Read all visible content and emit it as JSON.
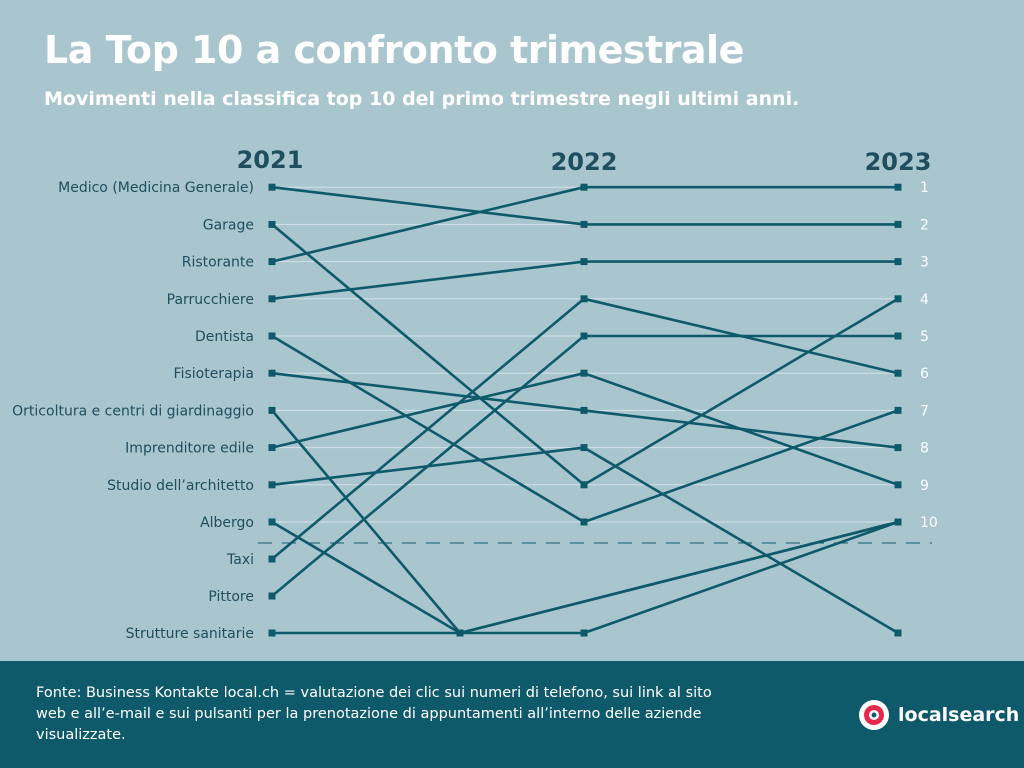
{
  "title": "La Top 10 a confronto trimestrale",
  "subtitle": "Movimenti nella classifica top 10 del primo trimestre negli ultimi anni.",
  "footer": {
    "source": "Fonte: Business Kontakte local.ch = valutazione dei clic sui numeri di telefono, sui link al sito web e all’e-mail e sui pulsanti per la prenotazione di appuntamenti all’interno delle aziende visualizzate.",
    "logo_text": "localsearch"
  },
  "colors": {
    "background": "#a9c5ce",
    "line": "#0f5a6a",
    "footer": "#0f5a6a",
    "label": "#1f4f5f",
    "gridline": "#d3e2e7",
    "logo_red": "#e6294b"
  },
  "chart_data": {
    "type": "line",
    "chart_kind": "bump chart (rank changes)",
    "years": [
      "2021",
      "2022",
      "2023"
    ],
    "ranks": [
      "1",
      "2",
      "3",
      "4",
      "5",
      "6",
      "7",
      "8",
      "9",
      "10"
    ],
    "left_labels": [
      "Medico (Medicina Generale)",
      "Garage",
      "Ristorante",
      "Parrucchiere",
      "Dentista",
      "Fisioterapia",
      "Orticoltura e centri di giardinaggio",
      "Imprenditore edile",
      "Studio dell’architetto",
      "Albergo",
      "Taxi",
      "Pittore",
      "Strutture sanitarie"
    ],
    "top10_cutoff": 10,
    "series": [
      {
        "name": "Medico (Medicina Generale)",
        "values": [
          1,
          2,
          2
        ]
      },
      {
        "name": "Garage",
        "values": [
          2,
          9,
          4
        ]
      },
      {
        "name": "Ristorante",
        "values": [
          3,
          1,
          1
        ]
      },
      {
        "name": "Parrucchiere",
        "values": [
          4,
          3,
          3
        ]
      },
      {
        "name": "Dentista",
        "values": [
          5,
          10,
          7
        ]
      },
      {
        "name": "Fisioterapia",
        "values": [
          6,
          7,
          8
        ]
      },
      {
        "name": "Orticoltura e centri di giardinaggio",
        "values": [
          7,
          13,
          10
        ]
      },
      {
        "name": "Imprenditore edile",
        "values": [
          8,
          6,
          9
        ]
      },
      {
        "name": "Studio dell’architetto",
        "values": [
          9,
          8,
          13
        ]
      },
      {
        "name": "Albergo",
        "values": [
          10,
          13,
          10
        ]
      },
      {
        "name": "Taxi",
        "values": [
          11,
          4,
          6
        ]
      },
      {
        "name": "Pittore",
        "values": [
          12,
          5,
          5
        ]
      },
      {
        "name": "Strutture sanitarie",
        "values": [
          13,
          13,
          10
        ]
      }
    ]
  }
}
